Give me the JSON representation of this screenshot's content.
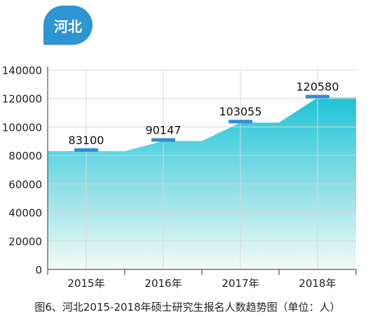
{
  "region_badge": "河北",
  "caption": "图6、河北2015-2018年硕士研究生报名人数趋势图（单位：人）",
  "colors": {
    "badge": "#2e95d3",
    "area_top": "#1ec3d6",
    "area_bottom": "#f4faf6",
    "marker": "#2e8fd4"
  },
  "chart_data": {
    "type": "area",
    "title": "",
    "xlabel": "",
    "ylabel": "",
    "categories": [
      "2015年",
      "2016年",
      "2017年",
      "2018年"
    ],
    "values": [
      83100,
      90147,
      103055,
      120580
    ],
    "data_labels": [
      "83100",
      "90147",
      "103055",
      "120580"
    ],
    "ylim": [
      0,
      140000
    ],
    "yticks": [
      "0",
      "20000",
      "40000",
      "60000",
      "80000",
      "100000",
      "120000",
      "140000"
    ],
    "grid": true,
    "legend": "none"
  }
}
